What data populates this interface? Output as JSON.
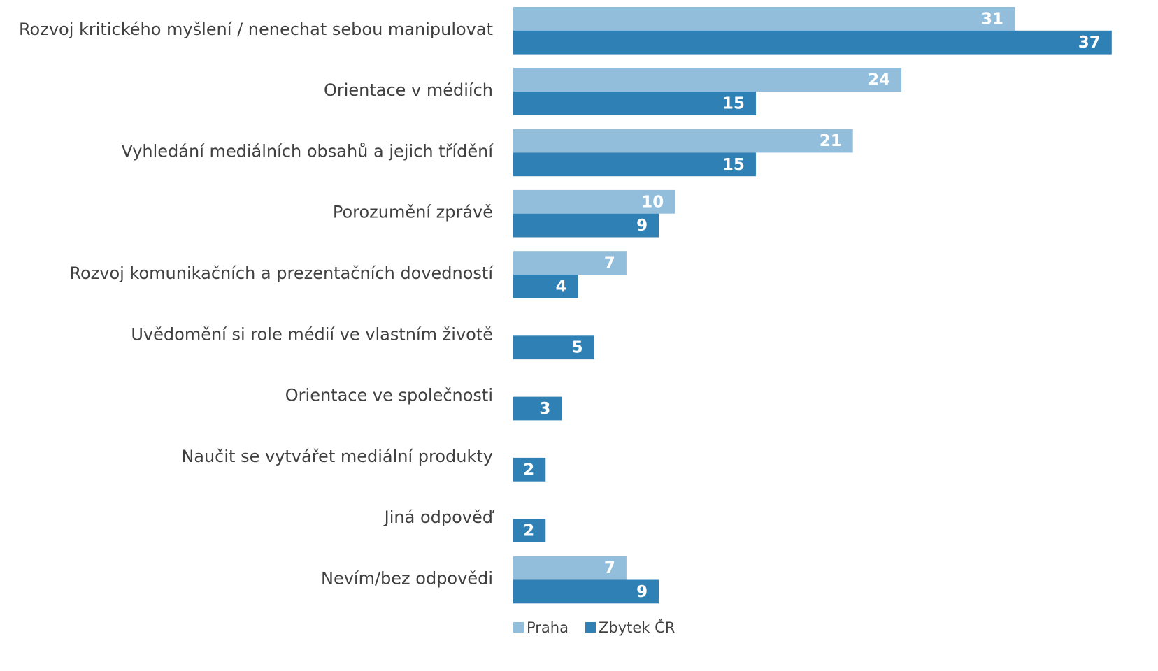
{
  "chart_data": {
    "type": "bar",
    "orientation": "horizontal",
    "categories": [
      "Rozvoj kritického myšlení / nenechat sebou manipulovat",
      "Orientace v médiích",
      "Vyhledání mediálních obsahů a jejich třídění",
      "Porozumění zprávě",
      "Rozvoj komunikačních a prezentačních dovedností",
      "Uvědomění si role médií ve vlastním životě",
      "Orientace ve společnosti",
      "Naučit se vytvářet mediální produkty",
      "Jiná odpověď",
      "Nevím/bez odpovědi"
    ],
    "series": [
      {
        "name": "Praha",
        "color": "#92bedb",
        "values": [
          31,
          24,
          21,
          10,
          7,
          null,
          null,
          null,
          null,
          7
        ]
      },
      {
        "name": "Zbytek ČR",
        "color": "#2e80b5",
        "values": [
          37,
          15,
          15,
          9,
          4,
          5,
          3,
          2,
          2,
          9
        ]
      }
    ],
    "legend": "bottom"
  }
}
